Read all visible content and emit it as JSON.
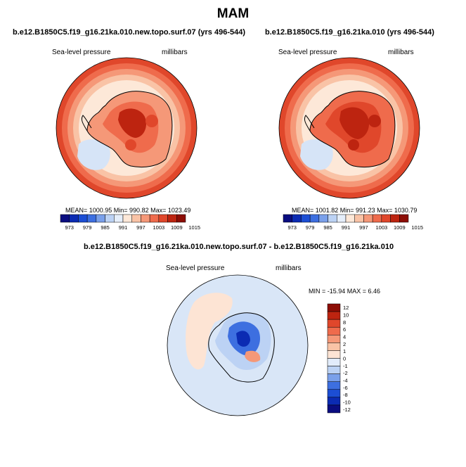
{
  "page_title": "MAM",
  "colors": {
    "scale_full": [
      "#0a0d80",
      "#0b2bb3",
      "#1c4ed4",
      "#3d6fe0",
      "#7aa0ea",
      "#bcd2f4",
      "#e5eefa",
      "#fde8d8",
      "#f9c3a6",
      "#f59878",
      "#ef6b4c",
      "#e0472b",
      "#bd2410",
      "#8c0d05"
    ],
    "diff_scale": [
      "#0a0d80",
      "#0b2bb3",
      "#1c4ed4",
      "#3d6fe0",
      "#7aa0ea",
      "#bcd2f4",
      "#e2ecfb",
      "#fde4d4",
      "#f9c3a6",
      "#f59878",
      "#ef6b4c",
      "#e0472b",
      "#bd2410",
      "#8c0d05"
    ],
    "outline": "#000000"
  },
  "chart_data": [
    {
      "type": "heatmap",
      "projection": "south-polar stereographic",
      "title": "b.e12.B1850C5.f19_g16.21ka.010.new.topo.surf.07 (yrs 496-544)",
      "variable": "Sea-level pressure",
      "units": "millibars",
      "stats": "MEAN= 1000.95  Min= 990.82  Max= 1023.49",
      "mean": 1000.95,
      "min": 990.82,
      "max": 1023.49,
      "levels": [
        "973",
        "979",
        "985",
        "991",
        "997",
        "1003",
        "1009",
        "1015"
      ]
    },
    {
      "type": "heatmap",
      "projection": "south-polar stereographic",
      "title": "b.e12.B1850C5.f19_g16.21ka.010 (yrs 496-544)",
      "variable": "Sea-level pressure",
      "units": "millibars",
      "stats": "MEAN= 1001.82  Min= 991.23  Max= 1030.79",
      "mean": 1001.82,
      "min": 991.23,
      "max": 1030.79,
      "levels": [
        "973",
        "979",
        "985",
        "991",
        "997",
        "1003",
        "1009",
        "1015"
      ]
    },
    {
      "type": "heatmap",
      "projection": "south-polar stereographic",
      "title": "b.e12.B1850C5.f19_g16.21ka.010.new.topo.surf.07 - b.e12.B1850C5.f19_g16.21ka.010",
      "variable": "Sea-level pressure",
      "units": "millibars",
      "stats": "MIN = -15.94 MAX =   6.46",
      "min": -15.94,
      "max": 6.46,
      "levels": [
        "12",
        "10",
        "8",
        "6",
        "4",
        "2",
        "1",
        "0",
        "-1",
        "-2",
        "-4",
        "-6",
        "-8",
        "-10",
        "-12"
      ]
    }
  ]
}
